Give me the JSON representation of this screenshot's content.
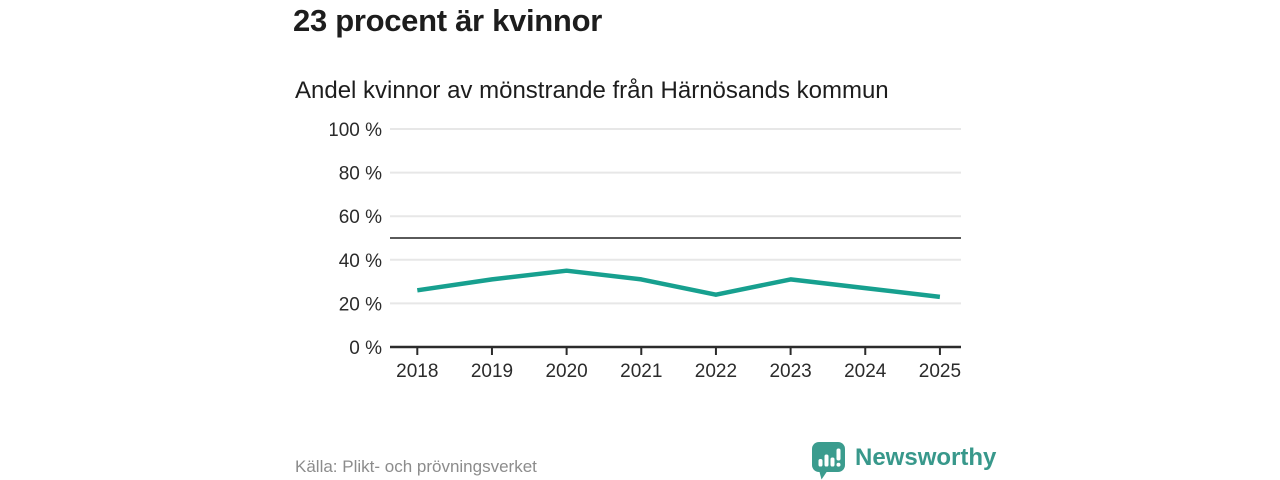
{
  "title": "23 procent är kvinnor",
  "subtitle": "Andel kvinnor av mönstrande från Härnösands kommun",
  "source": "Källa: Plikt- och prövningsverket",
  "brand": {
    "name": "Newsworthy",
    "color": "#3b9c8e"
  },
  "chart_data": {
    "type": "line",
    "title": "23 procent är kvinnor",
    "subtitle": "Andel kvinnor av mönstrande från Härnösands kommun",
    "categories": [
      "2018",
      "2019",
      "2020",
      "2021",
      "2022",
      "2023",
      "2024",
      "2025"
    ],
    "values": [
      26,
      31,
      35,
      31,
      24,
      31,
      27,
      23
    ],
    "unit": "%",
    "ylim": [
      0,
      100
    ],
    "yticks": [
      0,
      20,
      40,
      60,
      80,
      100
    ],
    "ytick_labels": [
      "0 %",
      "20 %",
      "40 %",
      "60 %",
      "80 %",
      "100 %"
    ],
    "reference_line": 50,
    "line_color": "#17a08f",
    "grid": true,
    "legend": "none",
    "xlabel": "",
    "ylabel": ""
  }
}
